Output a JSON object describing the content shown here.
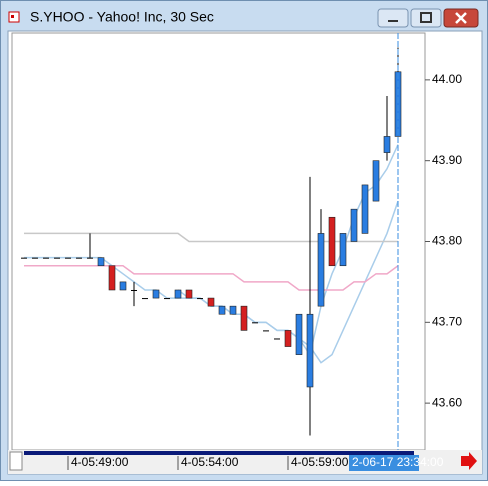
{
  "chart_data": {
    "type": "candlestick",
    "title": "S.YHOO - Yahoo! Inc, 30 Sec",
    "open": [
      43.78,
      43.78,
      43.78,
      43.78,
      43.78,
      43.78,
      43.78,
      43.77,
      43.77,
      43.74,
      43.74,
      43.73,
      43.73,
      43.73,
      43.73,
      43.74,
      43.73,
      43.73,
      43.71,
      43.71,
      43.72,
      43.7,
      43.69,
      43.68,
      43.69,
      43.66,
      43.62,
      43.72,
      43.83,
      43.77,
      43.8,
      43.81,
      43.85,
      43.91,
      43.93
    ],
    "high": [
      43.78,
      43.78,
      43.78,
      43.78,
      43.78,
      43.78,
      43.81,
      43.78,
      43.77,
      43.75,
      43.75,
      43.73,
      43.74,
      43.73,
      43.74,
      43.74,
      43.73,
      43.73,
      43.72,
      43.72,
      43.72,
      43.7,
      43.69,
      43.68,
      43.69,
      43.71,
      43.88,
      43.84,
      43.83,
      43.81,
      43.84,
      43.87,
      43.9,
      43.98,
      44.04
    ],
    "low": [
      43.78,
      43.78,
      43.78,
      43.78,
      43.78,
      43.78,
      43.78,
      43.77,
      43.74,
      43.74,
      43.72,
      43.73,
      43.73,
      43.73,
      43.73,
      43.73,
      43.73,
      43.72,
      43.71,
      43.71,
      43.69,
      43.7,
      43.69,
      43.68,
      43.67,
      43.66,
      43.56,
      43.72,
      43.77,
      43.77,
      43.8,
      43.81,
      43.85,
      43.9,
      43.93
    ],
    "close": [
      43.78,
      43.78,
      43.78,
      43.78,
      43.78,
      43.78,
      43.78,
      43.78,
      43.74,
      43.75,
      43.74,
      43.73,
      43.74,
      43.73,
      43.74,
      43.73,
      43.73,
      43.72,
      43.72,
      43.72,
      43.69,
      43.7,
      43.69,
      43.68,
      43.67,
      43.71,
      43.71,
      43.81,
      43.77,
      43.81,
      43.84,
      43.87,
      43.9,
      43.93,
      44.01
    ],
    "up_color": "#2a7de1",
    "down_color": "#d42020",
    "overlays": [
      {
        "color": "#a9cdea",
        "values": [
          43.78,
          43.78,
          43.78,
          43.78,
          43.78,
          43.78,
          43.78,
          43.78,
          43.77,
          43.76,
          43.75,
          43.74,
          43.74,
          43.73,
          43.73,
          43.73,
          43.73,
          43.72,
          43.72,
          43.71,
          43.71,
          43.7,
          43.7,
          43.69,
          43.69,
          43.68,
          43.66,
          43.72,
          43.76,
          43.79,
          43.83,
          43.86,
          43.87,
          43.89,
          43.92
        ]
      },
      {
        "color": "#a9cdea",
        "values": [
          null,
          null,
          null,
          null,
          null,
          null,
          null,
          null,
          null,
          null,
          null,
          null,
          null,
          null,
          43.74,
          43.73,
          43.73,
          43.72,
          43.72,
          43.71,
          43.71,
          43.7,
          43.7,
          43.69,
          43.69,
          43.68,
          43.67,
          43.65,
          43.66,
          43.69,
          43.72,
          43.75,
          43.78,
          43.81,
          43.85
        ]
      },
      {
        "color": "#f0a8c8",
        "values": [
          43.77,
          43.77,
          43.77,
          43.77,
          43.77,
          43.77,
          43.77,
          43.77,
          43.77,
          43.77,
          43.76,
          43.76,
          43.76,
          43.76,
          43.76,
          43.76,
          43.76,
          43.76,
          43.76,
          43.76,
          43.75,
          43.75,
          43.75,
          43.75,
          43.75,
          43.74,
          43.74,
          43.74,
          43.74,
          43.74,
          43.75,
          43.75,
          43.76,
          43.76,
          43.77
        ]
      },
      {
        "color": "#c8c8c8",
        "values": [
          43.81,
          43.81,
          43.81,
          43.81,
          43.81,
          43.81,
          43.81,
          43.81,
          43.81,
          43.81,
          43.81,
          43.81,
          43.81,
          43.81,
          43.81,
          43.8,
          43.8,
          43.8,
          43.8,
          43.8,
          43.8,
          43.8,
          43.8,
          43.8,
          43.8,
          43.8,
          43.8,
          43.8,
          43.8,
          43.8,
          43.8,
          43.8,
          43.8,
          43.8,
          43.8
        ]
      }
    ],
    "ylim": [
      43.542,
      44.058
    ],
    "yticks": [
      {
        "value": 44.0,
        "label": "44.00"
      },
      {
        "value": 43.9,
        "label": "43.90"
      },
      {
        "value": 43.8,
        "label": "43.80"
      },
      {
        "value": 43.7,
        "label": "43.70"
      },
      {
        "value": 43.6,
        "label": "43.60"
      }
    ],
    "xticks": [
      {
        "value": 4,
        "label": "4-05:49:00"
      },
      {
        "value": 14,
        "label": "4-05:54:00"
      },
      {
        "value": 24,
        "label": "4-05:59:00"
      }
    ],
    "cursor": {
      "index": 34,
      "label": "2-06-17 23:34:00"
    }
  }
}
